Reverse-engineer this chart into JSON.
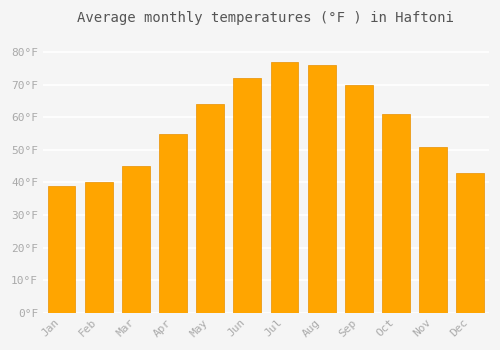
{
  "title": "Average monthly temperatures (°F ) in Haftoni",
  "months": [
    "Jan",
    "Feb",
    "Mar",
    "Apr",
    "May",
    "Jun",
    "Jul",
    "Aug",
    "Sep",
    "Oct",
    "Nov",
    "Dec"
  ],
  "values": [
    39,
    40,
    45,
    55,
    64,
    72,
    77,
    76,
    70,
    61,
    51,
    43
  ],
  "bar_color": "#FFA500",
  "bar_edge_color": "#E89000",
  "background_color": "#F5F5F5",
  "grid_color": "#FFFFFF",
  "tick_color": "#AAAAAA",
  "title_color": "#555555",
  "ylim": [
    0,
    85
  ],
  "yticks": [
    0,
    10,
    20,
    30,
    40,
    50,
    60,
    70,
    80
  ],
  "ytick_labels": [
    "0°F",
    "10°F",
    "20°F",
    "30°F",
    "40°F",
    "50°F",
    "60°F",
    "70°F",
    "80°F"
  ]
}
